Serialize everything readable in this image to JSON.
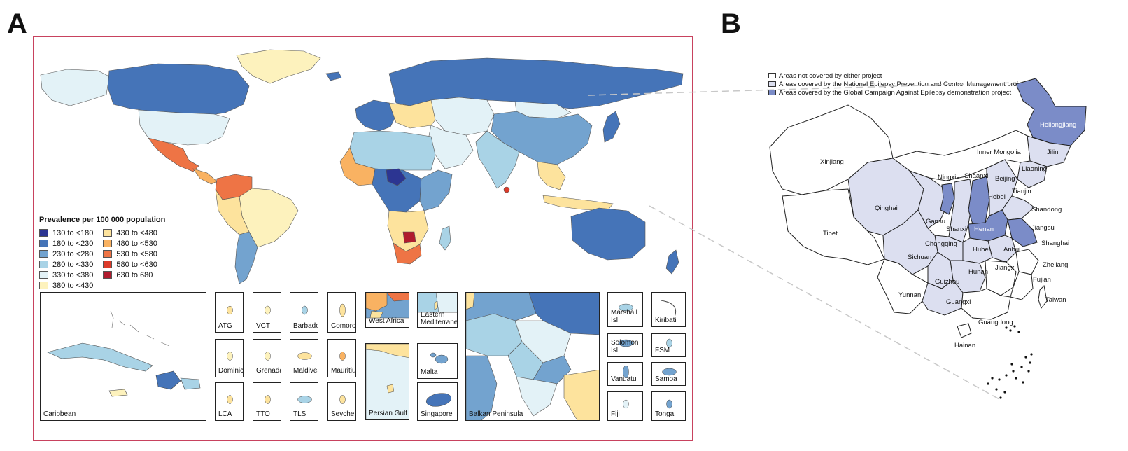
{
  "panels": {
    "a": "A",
    "b": "B"
  },
  "world": {
    "legend_title": "Prevalence per 100 000 population",
    "legend_left": [
      {
        "label": "130 to <180",
        "color": "#2c3592"
      },
      {
        "label": "180 to <230",
        "color": "#4574b8"
      },
      {
        "label": "230 to <280",
        "color": "#73a3cf"
      },
      {
        "label": "280 to <330",
        "color": "#a9d3e6"
      },
      {
        "label": "330 to <380",
        "color": "#e3f2f7"
      },
      {
        "label": "380 to <430",
        "color": "#fdf2bd"
      }
    ],
    "legend_right": [
      {
        "label": "430 to <480",
        "color": "#fde39d"
      },
      {
        "label": "480 to <530",
        "color": "#f9b262"
      },
      {
        "label": "530 to <580",
        "color": "#ee7445"
      },
      {
        "label": "580 to <630",
        "color": "#dc3b2a"
      },
      {
        "label": "630 to 680",
        "color": "#b01b2e"
      }
    ],
    "insets": {
      "caribbean": "Caribbean",
      "atg": "ATG",
      "vct": "VCT",
      "barbados": "Barbados",
      "comoros": "Comoros",
      "dominica": "Dominica",
      "grenada": "Grenada",
      "maldives": "Maldives",
      "mauritius": "Mauritius",
      "lca": "LCA",
      "tto": "TTO",
      "tls": "TLS",
      "seychelles": "Seychelles",
      "west_africa": "West Africa",
      "persian_gulf": "Persian Gulf",
      "eastern_med": "Eastern Mediterranean",
      "malta": "Malta",
      "singapore": "Singapore",
      "balkan": "Balkan Peninsula",
      "marshall": "Marshall Isl",
      "kiribati": "Kiribati",
      "solomon": "Solomon Isl",
      "fsm": "FSM",
      "vanuatu": "Vanuatu",
      "samoa": "Samoa",
      "fiji": "Fiji",
      "tonga": "Tonga"
    }
  },
  "china": {
    "legend": [
      {
        "label": "Areas not covered by either project",
        "color": "#ffffff"
      },
      {
        "label": "Areas covered by the National Epilepsy Prevention and Control Management project",
        "color": "#dcdff0"
      },
      {
        "label": "Areas covered by the Global Campaign Against Epilepsy demonstration project",
        "color": "#7b8cc8"
      }
    ],
    "provinces": {
      "heilongjiang": "Heilongjiang",
      "jilin": "Jilin",
      "liaoning": "Liaoning",
      "inner_mongolia": "Inner Mongolia",
      "xinjiang": "Xinjiang",
      "tibet": "Tibet",
      "qinghai": "Qinghai",
      "gansu": "Gansu",
      "ningxia": "Ningxia",
      "shaanxi": "Shaanxi",
      "shanxi": "Shanxi",
      "beijing": "Beijing",
      "tianjin": "Tianjin",
      "hebei": "Hebei",
      "shandong": "Shandong",
      "henan": "Henan",
      "jiangsu": "Jiangsu",
      "shanghai": "Shanghai",
      "anhui": "Anhui",
      "hubei": "Hubei",
      "chongqing": "Chongqing",
      "sichuan": "Sichuan",
      "zhejiang": "Zhejiang",
      "hunan": "Hunan",
      "jiangxi": "Jiangxi",
      "guizhou": "Guizhou",
      "fujian": "Fujian",
      "yunnan": "Yunnan",
      "guangxi": "Guangxi",
      "taiwan": "Taiwan",
      "guangdong": "Guangdong",
      "hainan": "Hainan"
    }
  }
}
